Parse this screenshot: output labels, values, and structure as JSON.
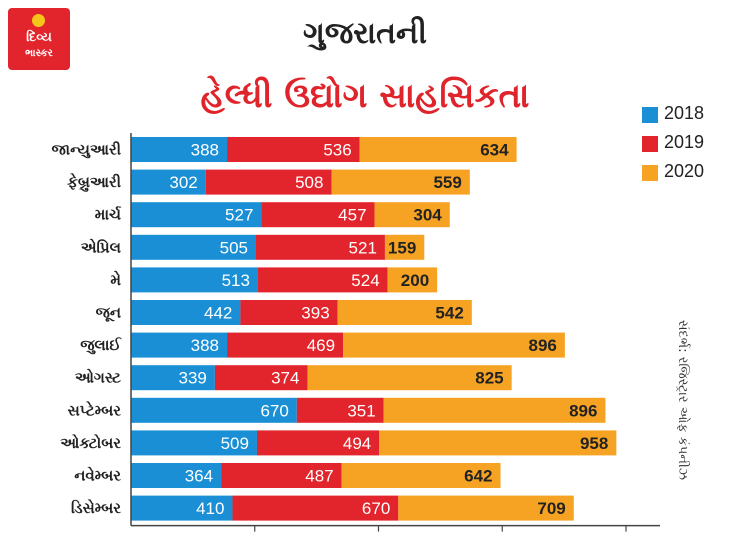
{
  "logo": {
    "line1": "દિવ્ય",
    "line2": "ભાસ્કર"
  },
  "title_line1": "ગુજરાતની",
  "title_line2": "હેલ્ધી ઉદ્યોગ સાહસિકતા",
  "source": "સંદર્ભ: રજિસ્ટ્રાર ઓફ કંપનીઝ",
  "colors": {
    "2018": "#1a8fd6",
    "2019": "#e2242c",
    "2020": "#f6a323",
    "axis": "#444444"
  },
  "chart_data": {
    "type": "bar",
    "orientation": "horizontal",
    "stacked": true,
    "categories": [
      "જાન્યુઆરી",
      "ફેબ્રુઆરી",
      "માર્ચ",
      "એપ્રિલ",
      "મે",
      "જૂન",
      "જુલાઈ",
      "ઓગસ્ટ",
      "સપ્ટેમ્બર",
      "ઓક્ટોબર",
      "નવેમ્બર",
      "ડિસેમ્બર"
    ],
    "series": [
      {
        "name": "2018",
        "values": [
          388,
          302,
          527,
          505,
          513,
          442,
          388,
          339,
          670,
          509,
          364,
          410
        ]
      },
      {
        "name": "2019",
        "values": [
          536,
          508,
          457,
          521,
          524,
          393,
          469,
          374,
          351,
          494,
          487,
          670
        ]
      },
      {
        "name": "2020",
        "values": [
          634,
          559,
          304,
          159,
          200,
          542,
          896,
          825,
          896,
          958,
          642,
          709
        ]
      }
    ],
    "legend_position": "right",
    "xlim": [
      0,
      2200
    ],
    "grid": false
  }
}
